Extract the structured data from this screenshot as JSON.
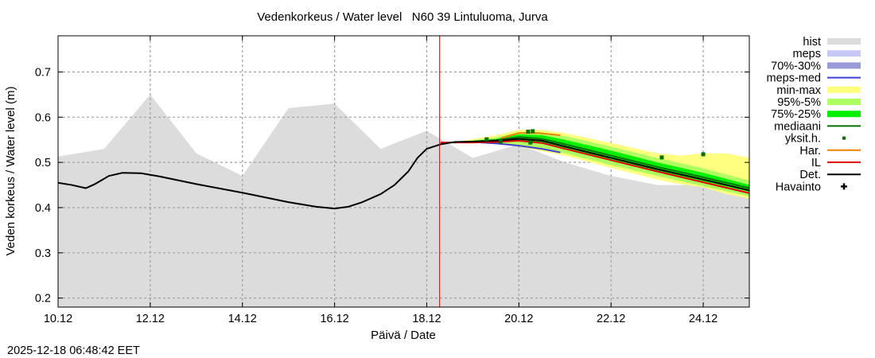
{
  "chart_data": {
    "type": "area",
    "title": "Vedenkorkeus / Water level   N60 39 Lintuluoma, Jurva",
    "xlabel": "Päivä / Date",
    "ylabel": "Veden korkeus / Water level (m)",
    "timestamp": "2025-12-18 06:48:42 EET",
    "xlim": [
      0,
      15
    ],
    "x_unit": "days since 10.12",
    "ylim": [
      0.18,
      0.78
    ],
    "grid": true,
    "x_ticks": [
      {
        "x": 0,
        "label": "10.12"
      },
      {
        "x": 2,
        "label": "12.12"
      },
      {
        "x": 4,
        "label": "14.12"
      },
      {
        "x": 6,
        "label": "16.12"
      },
      {
        "x": 8,
        "label": "18.12"
      },
      {
        "x": 10,
        "label": "20.12"
      },
      {
        "x": 12,
        "label": "22.12"
      },
      {
        "x": 14,
        "label": "24.12"
      }
    ],
    "y_ticks": [
      {
        "y": 0.2,
        "label": "0.2"
      },
      {
        "y": 0.3,
        "label": "0.3"
      },
      {
        "y": 0.4,
        "label": "0.4"
      },
      {
        "y": 0.5,
        "label": "0.5"
      },
      {
        "y": 0.6,
        "label": "0.6"
      },
      {
        "y": 0.7,
        "label": "0.7"
      }
    ],
    "now_x": 8.28,
    "legend_position": "right",
    "legend": [
      {
        "label": "hist",
        "kind": "band",
        "color": "#dcdcdc"
      },
      {
        "label": "meps",
        "kind": "band",
        "color": "#c8c8f8"
      },
      {
        "label": "70%-30%",
        "kind": "band",
        "color": "#9a9ad8"
      },
      {
        "label": "meps-med",
        "kind": "line",
        "color": "#4040d0"
      },
      {
        "label": "min-max",
        "kind": "band",
        "color": "#ffff80"
      },
      {
        "label": "95%-5%",
        "kind": "band",
        "color": "#b0ff60"
      },
      {
        "label": "75%-25%",
        "kind": "band",
        "color": "#00f000"
      },
      {
        "label": "mediaani",
        "kind": "line",
        "color": "#007000"
      },
      {
        "label": "yksit.h.",
        "kind": "dot",
        "color": "#007000"
      },
      {
        "label": "Har.",
        "kind": "line",
        "color": "#f08000"
      },
      {
        "label": "IL",
        "kind": "line",
        "color": "#e00000"
      },
      {
        "label": "Det.",
        "kind": "line",
        "color": "#000000"
      },
      {
        "label": "Havainto",
        "kind": "plus",
        "color": "#000000"
      }
    ],
    "series": {
      "hist_upper": {
        "x": [
          0,
          1,
          2,
          3,
          4,
          5,
          6,
          7,
          8,
          9,
          10,
          11,
          12,
          13,
          14,
          15
        ],
        "y": [
          0.513,
          0.53,
          0.65,
          0.52,
          0.47,
          0.62,
          0.63,
          0.53,
          0.57,
          0.51,
          0.54,
          0.5,
          0.47,
          0.45,
          0.45,
          0.42
        ]
      },
      "det": {
        "x": [
          0,
          0.3,
          0.6,
          0.8,
          1.1,
          1.4,
          1.8,
          2.2,
          3.0,
          4.0,
          5.0,
          5.6,
          6.0,
          6.3,
          6.6,
          7.0,
          7.3,
          7.6,
          7.8,
          8.0,
          8.3,
          8.6,
          9.0,
          9.5,
          10.0,
          10.5,
          11.0,
          12.0,
          13.0,
          14.0,
          15.0
        ],
        "y": [
          0.455,
          0.45,
          0.443,
          0.452,
          0.47,
          0.477,
          0.476,
          0.469,
          0.452,
          0.433,
          0.412,
          0.402,
          0.398,
          0.402,
          0.412,
          0.43,
          0.45,
          0.48,
          0.51,
          0.53,
          0.54,
          0.545,
          0.546,
          0.548,
          0.552,
          0.548,
          0.535,
          0.51,
          0.485,
          0.462,
          0.438
        ]
      },
      "il": {
        "x": [
          8.3,
          9.0,
          9.5,
          10.0,
          10.5,
          11.0,
          12.0,
          13.0,
          14.0,
          15.0
        ],
        "y": [
          0.544,
          0.544,
          0.545,
          0.548,
          0.543,
          0.53,
          0.505,
          0.48,
          0.456,
          0.432
        ]
      },
      "har": {
        "x": [
          9.6,
          10.0,
          10.4,
          10.9
        ],
        "y": [
          0.553,
          0.565,
          0.565,
          0.56
        ]
      },
      "meps_med": {
        "x": [
          8.6,
          9.0,
          9.5,
          10.0,
          10.5,
          10.9
        ],
        "y": [
          0.545,
          0.545,
          0.542,
          0.537,
          0.53,
          0.522
        ]
      },
      "mediaani": {
        "x": [
          8.6,
          9.0,
          9.5,
          10.0,
          10.5,
          11.0,
          12.0,
          13.0,
          14.0,
          15.0
        ],
        "y": [
          0.545,
          0.546,
          0.549,
          0.556,
          0.552,
          0.54,
          0.515,
          0.49,
          0.467,
          0.443
        ]
      },
      "band_minmax": {
        "x": [
          8.8,
          9.5,
          10.0,
          10.5,
          11.0,
          12.0,
          13.0,
          13.5,
          14.0,
          14.5,
          15.0
        ],
        "upper": [
          0.548,
          0.56,
          0.572,
          0.572,
          0.565,
          0.543,
          0.52,
          0.515,
          0.52,
          0.52,
          0.51
        ],
        "lower": [
          0.544,
          0.542,
          0.535,
          0.525,
          0.515,
          0.488,
          0.462,
          0.452,
          0.445,
          0.43,
          0.42
        ]
      },
      "band_95_5": {
        "x": [
          8.8,
          9.5,
          10.0,
          10.5,
          11.0,
          12.0,
          13.0,
          14.0,
          15.0
        ],
        "upper": [
          0.547,
          0.555,
          0.567,
          0.567,
          0.558,
          0.535,
          0.51,
          0.487,
          0.46
        ],
        "lower": [
          0.544,
          0.542,
          0.538,
          0.53,
          0.52,
          0.494,
          0.47,
          0.447,
          0.425
        ]
      },
      "band_75_25": {
        "x": [
          8.8,
          9.5,
          10.0,
          10.5,
          11.0,
          12.0,
          13.0,
          14.0,
          15.0
        ],
        "upper": [
          0.546,
          0.552,
          0.562,
          0.56,
          0.55,
          0.526,
          0.5,
          0.477,
          0.45
        ],
        "lower": [
          0.545,
          0.545,
          0.548,
          0.543,
          0.532,
          0.506,
          0.481,
          0.458,
          0.435
        ]
      },
      "yksit_points": {
        "x": [
          9.3,
          9.6,
          10.2,
          10.3,
          10.25,
          13.1,
          14.0
        ],
        "y": [
          0.551,
          0.546,
          0.568,
          0.569,
          0.544,
          0.511,
          0.518
        ]
      }
    }
  }
}
